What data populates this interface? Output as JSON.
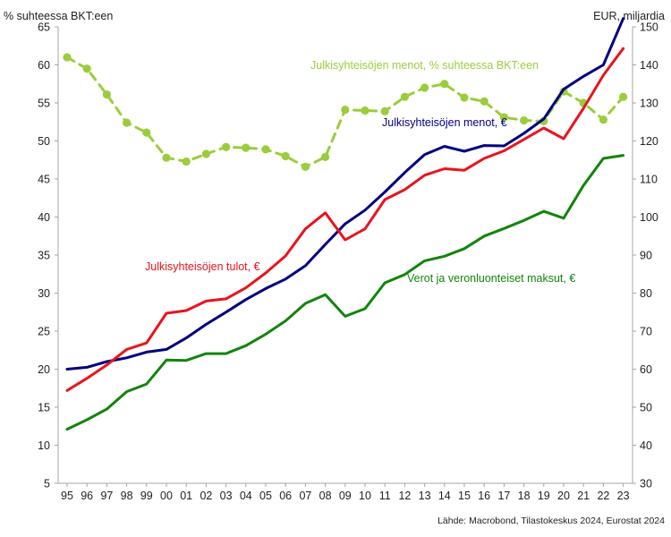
{
  "chart_data": {
    "type": "line",
    "left_axis_title": "% suhteessa BKT:een",
    "right_axis_title": "EUR, miljardia",
    "source": "Lähde: Macrobond, Tilastokeskus 2024, Eurostat 2024",
    "categories": [
      "95",
      "96",
      "97",
      "98",
      "99",
      "00",
      "01",
      "02",
      "03",
      "04",
      "05",
      "06",
      "07",
      "08",
      "09",
      "10",
      "11",
      "12",
      "13",
      "14",
      "15",
      "16",
      "17",
      "18",
      "19",
      "20",
      "21",
      "22",
      "23"
    ],
    "left_axis": {
      "min": 5,
      "max": 65,
      "ticks": [
        5,
        10,
        15,
        20,
        25,
        30,
        35,
        40,
        45,
        50,
        55,
        60,
        65
      ]
    },
    "right_axis": {
      "min": 30,
      "max": 150,
      "ticks": [
        30,
        40,
        50,
        60,
        70,
        80,
        90,
        100,
        110,
        120,
        130,
        140,
        150
      ]
    },
    "grid": false,
    "series": [
      {
        "name": "Julkisyhteisöjen menot, % suhteessa BKT:een",
        "axis": "left",
        "color": "#9acd3c",
        "style": "dashed-markers",
        "values": [
          61.0,
          59.5,
          56.1,
          52.4,
          51.1,
          47.8,
          47.3,
          48.3,
          49.2,
          49.1,
          48.9,
          48.0,
          46.6,
          47.9,
          54.1,
          54.0,
          53.9,
          55.8,
          57.0,
          57.5,
          55.7,
          55.2,
          53.1,
          52.7,
          52.6,
          56.5,
          55.0,
          52.8,
          55.8
        ]
      },
      {
        "name": "Julkisyhteisöjen menot, €",
        "axis": "right",
        "color": "#000080",
        "style": "solid",
        "values": [
          60.0,
          60.5,
          62.0,
          63.0,
          64.5,
          65.2,
          68.2,
          71.8,
          75.0,
          78.3,
          81.2,
          83.7,
          87.2,
          92.8,
          98.2,
          101.8,
          106.6,
          111.7,
          116.4,
          118.6,
          117.3,
          118.8,
          118.7,
          122.0,
          125.8,
          133.6,
          137.0,
          140.0,
          152.2
        ]
      },
      {
        "name": "Julkisyhteisöjen tulot, €",
        "axis": "right",
        "color": "#e8141e",
        "style": "solid",
        "values": [
          54.4,
          57.6,
          61.1,
          65.2,
          66.9,
          74.7,
          75.4,
          77.9,
          78.5,
          81.4,
          85.3,
          89.8,
          96.9,
          101.1,
          94.0,
          96.9,
          104.6,
          107.2,
          111.0,
          112.7,
          112.3,
          115.4,
          117.4,
          120.4,
          123.4,
          120.6,
          128.6,
          137.3,
          144.3
        ]
      },
      {
        "name": "Verot ja veronluonteiset maksut, €",
        "axis": "right",
        "color": "#12840c",
        "style": "solid",
        "values": [
          44.2,
          46.7,
          49.5,
          54.1,
          56.1,
          62.4,
          62.3,
          64.1,
          64.1,
          66.2,
          69.2,
          72.7,
          77.3,
          79.6,
          73.9,
          75.9,
          82.7,
          84.9,
          88.5,
          89.7,
          91.7,
          95.0,
          97.0,
          99.1,
          101.5,
          99.7,
          108.3,
          115.4,
          116.2
        ]
      }
    ]
  }
}
